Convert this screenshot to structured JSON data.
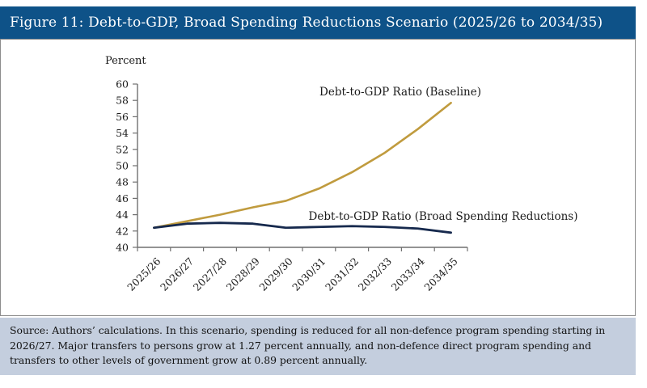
{
  "figure": {
    "title": "Figure 11: Debt-to-GDP, Broad Spending Reductions Scenario (2025/26 to 2034/35)",
    "source_note": "Source: Authors’ calculations. In this scenario, spending is reduced for all non-defence program spending starting in 2026/27. Major transfers to persons grow at 1.27 percent annually, and non-defence direct program spending and transfers to other levels of government grow at 0.89 percent annually."
  },
  "colors": {
    "header_bg": "#0E5288",
    "header_text": "#FFFFFF",
    "note_bg": "#C4CEDE",
    "panel_border": "#8C8C8C",
    "axis": "#707070",
    "baseline_line": "#C09B3E",
    "reductions_line": "#16294D"
  },
  "chart_data": {
    "type": "line",
    "title": "",
    "xlabel": "",
    "ylabel": "Percent",
    "ylim": [
      40,
      60
    ],
    "yticks": [
      40,
      42,
      44,
      46,
      48,
      50,
      52,
      54,
      56,
      58,
      60
    ],
    "grid": false,
    "legend_position": "inline-annotations",
    "categories": [
      "2025/26",
      "2026/27",
      "2027/28",
      "2028/29",
      "2029/30",
      "2030/31",
      "2031/32",
      "2032/33",
      "2033/34",
      "2034/35"
    ],
    "series": [
      {
        "name": "Debt-to-GDP Ratio (Baseline)",
        "color": "#C09B3E",
        "stroke_width": 2.6,
        "values": [
          42.4,
          43.2,
          44.0,
          44.9,
          45.7,
          47.2,
          49.2,
          51.6,
          54.5,
          57.7
        ]
      },
      {
        "name": "Debt-to-GDP Ratio (Broad Spending Reductions)",
        "color": "#16294D",
        "stroke_width": 2.8,
        "values": [
          42.4,
          42.9,
          43.0,
          42.9,
          42.4,
          42.5,
          42.6,
          42.5,
          42.3,
          41.8
        ]
      }
    ]
  }
}
